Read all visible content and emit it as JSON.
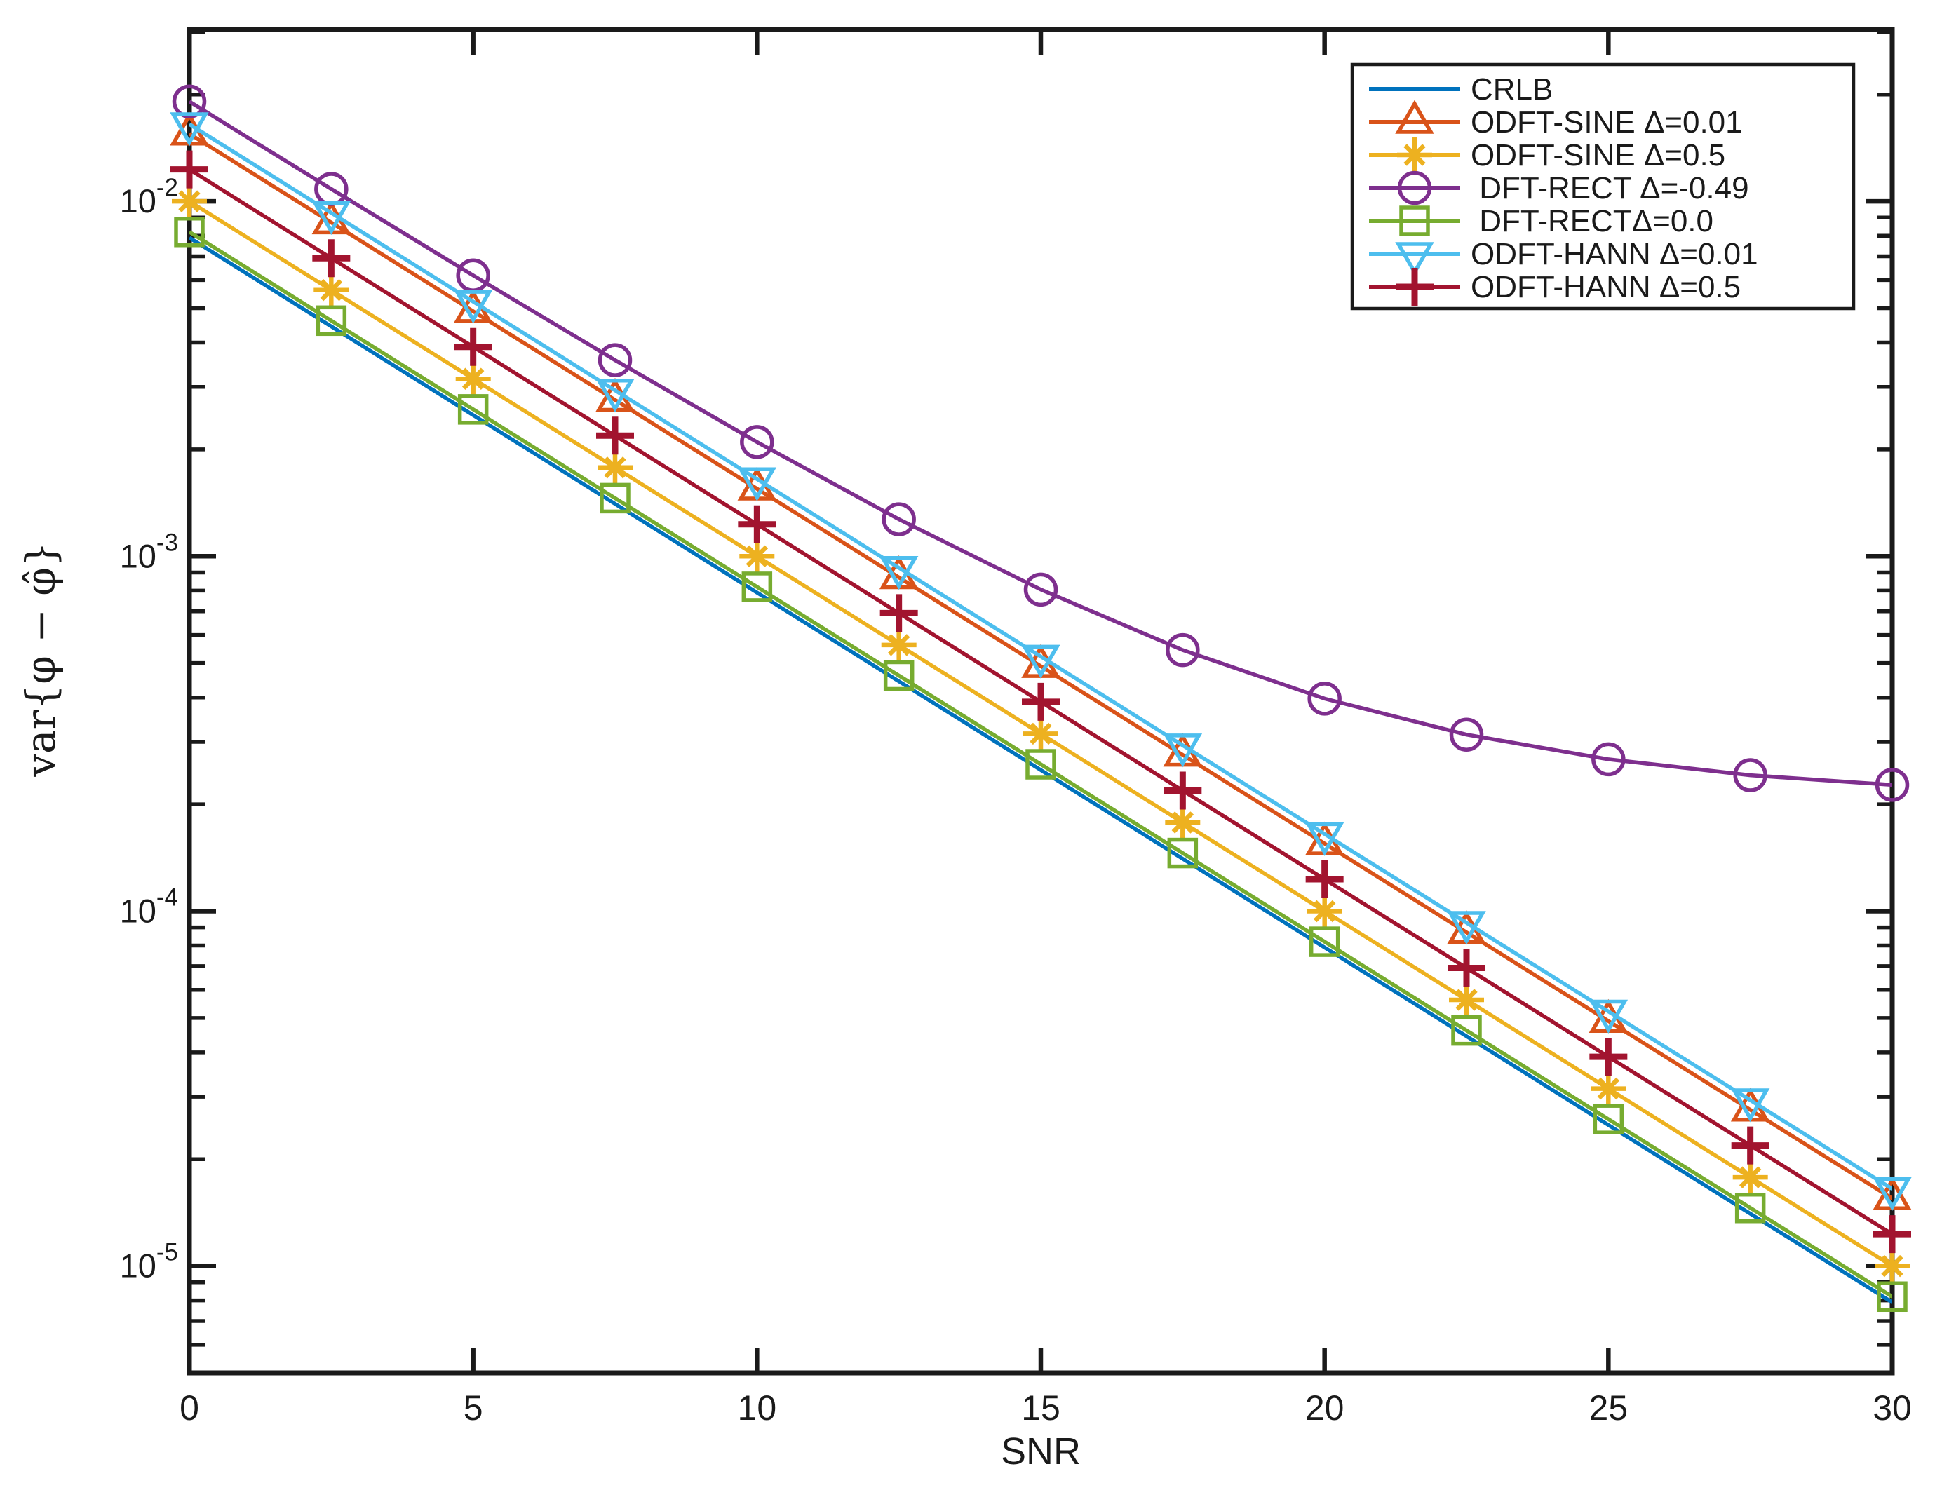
{
  "figure": {
    "background": "#ffffff",
    "axis_color": "#1a1a1a"
  },
  "chart_data": {
    "type": "line",
    "title": "",
    "xlabel": "SNR",
    "ylabel": "var{φ − φ̂}",
    "yscale": "log",
    "xlim": [
      0,
      30
    ],
    "ylim": [
      5e-06,
      0.0305
    ],
    "x_ticks": [
      0,
      5,
      10,
      15,
      20,
      25,
      30
    ],
    "y_tick_exponents": [
      -2,
      -3,
      -4,
      -5
    ],
    "grid": "off",
    "legend_position": "top-right",
    "x": [
      0,
      2.5,
      5,
      7.5,
      10,
      12.5,
      15,
      17.5,
      20,
      22.5,
      25,
      27.5,
      30
    ],
    "series": [
      {
        "name": "CRLB",
        "color": "#0072BD",
        "marker": "none",
        "values": [
          0.0079,
          0.004442,
          0.002498,
          0.001405,
          0.00079,
          0.0004442,
          0.0002498,
          0.0001405,
          7.9e-05,
          4.442e-05,
          2.498e-05,
          1.405e-05,
          7.9e-06
        ]
      },
      {
        "name": "ODFT-SINE Δ=0.01",
        "color": "#D95319",
        "marker": "triangle-up",
        "values": [
          0.0155,
          0.008716,
          0.004901,
          0.002756,
          0.00155,
          0.0008716,
          0.0004901,
          0.0002756,
          0.000155,
          8.716e-05,
          4.901e-05,
          2.756e-05,
          1.55e-05
        ]
      },
      {
        "name": "ODFT-SINE Δ=0.5",
        "color": "#EDB120",
        "marker": "asterisk",
        "values": [
          0.01,
          0.005623,
          0.003162,
          0.001778,
          0.001,
          0.0005623,
          0.0003162,
          0.0001778,
          0.0001,
          5.623e-05,
          3.162e-05,
          1.778e-05,
          1e-05
        ]
      },
      {
        "name": " DFT-RECT Δ=-0.49",
        "color": "#7E2F8E",
        "marker": "circle",
        "values": [
          0.01911,
          0.010836,
          0.006184,
          0.003569,
          0.002098,
          0.001271,
          0.0008056,
          0.0005441,
          0.000397,
          0.0003143,
          0.0002678,
          0.0002416,
          0.0002269
        ]
      },
      {
        "name": " DFT-RECTΔ=0.0",
        "color": "#77AC30",
        "marker": "square",
        "values": [
          0.0082,
          0.004611,
          0.002593,
          0.001458,
          0.00082,
          0.0004611,
          0.0002593,
          0.0001458,
          8.2e-05,
          4.611e-05,
          2.593e-05,
          1.458e-05,
          8.2e-06
        ]
      },
      {
        "name": "ODFT-HANN Δ=0.01",
        "color": "#4DBEEE",
        "marker": "triangle-down",
        "values": [
          0.0165,
          0.009278,
          0.005217,
          0.002934,
          0.00165,
          0.0009278,
          0.0005217,
          0.0002934,
          0.000165,
          9.278e-05,
          5.217e-05,
          2.934e-05,
          1.65e-05
        ]
      },
      {
        "name": "ODFT-HANN Δ=0.5",
        "color": "#A2142F",
        "marker": "plus",
        "values": [
          0.0123,
          0.006916,
          0.003889,
          0.002187,
          0.00123,
          0.0006916,
          0.0003889,
          0.0002187,
          0.000123,
          6.916e-05,
          3.889e-05,
          2.187e-05,
          1.23e-05
        ]
      }
    ]
  }
}
